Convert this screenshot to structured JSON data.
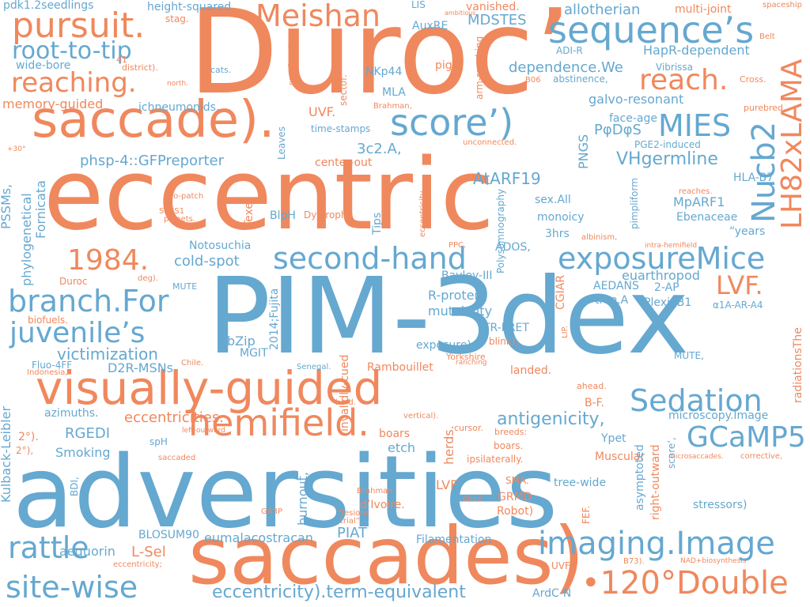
{
  "words": {
    "w0": "adversities",
    "w1": "eccentric",
    "w2": "PIM-3dex",
    "w3": "Duroc’",
    "w4": "saccades)",
    "w5": "visually-guided",
    "w6": "saccade).",
    "w7": "hemifield.",
    "w8": "sequence’s",
    "w9": "second-hand",
    "w10": "exposureMice",
    "w11": "imaging.Image",
    "w12": "score’)",
    "w13": "Meishan",
    "w14": "pursuit.",
    "w15": "reaching.",
    "w16": "root-to-tip",
    "w17": "branch.For",
    "w18": "juvenile’s",
    "w19": "rattle",
    "w20": "site-wise",
    "w21": "•120°Double",
    "w22": "Sedation",
    "w23": "GCaMP5",
    "w24": "MIES",
    "w25": "reach.",
    "w26": "Nucb2",
    "w27": "LH82xLAMA",
    "w28": "1984.",
    "w29": "LVF.",
    "w30": "antigenicity,",
    "w31": "eccentricity).term-equivalent",
    "w32": "eccentricities.",
    "w33": "phsp-4::GFPreporter",
    "w34": "AtARF19",
    "w35": "VHgermline",
    "w36": "cold-spot",
    "w37": "victimization",
    "w38": "dependence.We",
    "w39": "allotherian",
    "w40": "MDSTES",
    "w41": "HapR-dependent",
    "w42": "galvo-resonant",
    "w43": "3c2.A,",
    "w44": "RGEDI",
    "w45": "D2R-MSNs",
    "w46": "Smoking",
    "w47": "etch",
    "w48": "herds.",
    "w49": "eumalacostracan",
    "w50": "PIAT",
    "w51": "L-Sel",
    "w52": "aequorin",
    "w53": "Filamentation",
    "w54": "ArdC-N",
    "w55": "UVF",
    "w56": "BLOSUM90",
    "w57": "burnout,",
    "w58": "R-protein",
    "w59": "mutability",
    "w60": "Bayley-III",
    "w61": "exposure)",
    "w62": "Rambouillet",
    "w63": "landed.",
    "w64": "TR-FRET",
    "w65": "PlexinB1",
    "w66": "MpARF1",
    "w67": "PφDφS",
    "w68": "PNGS",
    "w69": "face-age",
    "w70": "PGE2-induced",
    "w71": "Ebenaceae",
    "w72": "HLA-B7",
    "w73": "“years",
    "w74": "sex.All",
    "w75": "monoicy",
    "w76": "3hrs",
    "w77": "ADOS,",
    "w78": "euarthropod",
    "w79": "AEDANS",
    "w80": "tree.A",
    "w81": "2-AP",
    "w82": "α1A-AR-A4",
    "w83": "radiationsThe",
    "w84": "MUTE,",
    "w85": "microscopy.Image",
    "w86": "Ypet",
    "w87": "B-F.",
    "w88": "Muscular",
    "w89": "stressors)",
    "w90": "tree-wide",
    "w91": "GRMD",
    "w92": "Robot)",
    "w93": "d’Ivoire.",
    "w94": "SMA.",
    "w95": "boars.",
    "w96": "boars",
    "w97": "LVF",
    "w98": "Brahman",
    "w99": "“lesions",
    "w100": "trial”.",
    "w101": "GA3P",
    "w102": "pdk1.2seedlings",
    "w103": "height-squared",
    "w104": "stag.",
    "w105": "LIS",
    "w106": "vanished.",
    "w107": "AuxRE",
    "w108": "wide-bore",
    "w109": "district).",
    "w110": "cats.",
    "w111": "memory-guided",
    "w112": "ichneumonids,",
    "w113": "pig",
    "w114": "NKp44",
    "w115": "MLA",
    "w116": "abstinence,",
    "w117": "Vibrissa",
    "w118": "Cross.",
    "w119": "purebred,",
    "w120": "ADI-R",
    "w121": "multi-joint",
    "w122": "spaceship",
    "w123": "Belt",
    "w124": "B06",
    "w125": "Brahman,",
    "w126": "unconnected.",
    "w127": "time-stamps",
    "w128": "UVF.",
    "w129": "center-out",
    "w130": "PSSMs,",
    "w131": "phylogenetical",
    "w132": "Fornicata",
    "w133": "Duroc",
    "w134": "MUTE",
    "w135": "biofuels.",
    "w136": "Fluo-4FF",
    "w137": "Kulback-Leibler",
    "w138": "2°).",
    "w139": "2°),",
    "w140": "azimuths.",
    "w141": "BDI,",
    "w142": "Chile.",
    "w143": "Indonesia,",
    "w144": "SPCS1",
    "w145": "planets.",
    "w146": "two-patch",
    "w147": "Texel",
    "w148": "BlpH",
    "w149": "Dystrophy",
    "w150": "Notosuchia",
    "w151": "MGIT",
    "w152": "bZip",
    "w153": "Senegal.",
    "w154": "Yorkshire",
    "w155": "ranching",
    "w156": "blink).",
    "w157": "herd.",
    "w158": "cursor.",
    "w159": "breeds:",
    "w160": "ipsilaterally.",
    "w161": "ahead.",
    "w162": "reaches.",
    "w163": "albinism,",
    "w164": "intra-hemifield",
    "w165": "CGIAR",
    "w166": "LIP.",
    "w167": "FEF.",
    "w168": "Chad.",
    "w169": "B73).",
    "w170": "NAD+biosynthesis",
    "w171": "microsaccades.",
    "w172": "corrective,",
    "w173": "asymptoted",
    "w174": "right-outward",
    "w175": "score’,",
    "w176": "saccaded",
    "w177": "left-outward",
    "w178": "eccentricity;",
    "w179": "vertical).",
    "w180": "PPC.",
    "w181": "deg).",
    "w182": "north.",
    "w183": "+30°",
    "w184": "41",
    "w185": "sector.",
    "w186": "arm-reaching",
    "w187": "ambitious",
    "w188": "near-foveal",
    "w189": "Leaves",
    "w190": "Tips",
    "w191": "Polysomnography",
    "w192": "pimpliform",
    "w193": "eccentricity.",
    "w194": "2014;Fujita",
    "w195": "invalidly-cued",
    "w196": "spH"
  }
}
